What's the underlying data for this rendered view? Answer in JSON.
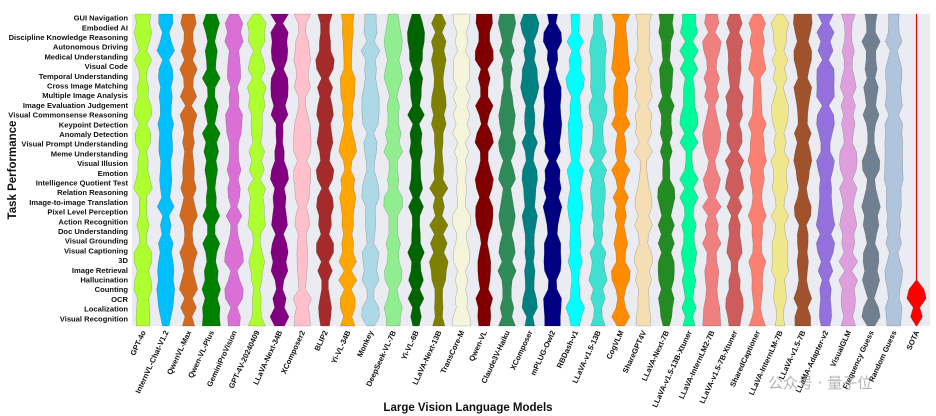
{
  "chart_data": {
    "type": "violin",
    "xlabel": "Large Vision Language Models",
    "ylabel": "Task Performance",
    "categories": [
      "GUI Navigation",
      "Embodied AI",
      "Discipline Knowledge Reasoning",
      "Autonomous Driving",
      "Medical Understanding",
      "Visual Code",
      "Temporal Understanding",
      "Cross Image Matching",
      "Multiple Image Analysis",
      "Image Evaluation Judgement",
      "Visual Commonsense Reasoning",
      "Keypoint Detection",
      "Anomaly Detection",
      "Visual Prompt Understanding",
      "Meme Understanding",
      "Visual Illusion",
      "Emotion",
      "Intelligence Quotient Test",
      "Relation Reasoning",
      "Image-to-image Translation",
      "Pixel Level Perception",
      "Action Recognition",
      "Doc Understanding",
      "Visual Grounding",
      "Visual Captioning",
      "3D",
      "Image Retrieval",
      "Hallucination",
      "Counting",
      "OCR",
      "Localization",
      "Visual Recognition"
    ],
    "models": [
      {
        "name": "GPT-4o",
        "color": "#adff2f"
      },
      {
        "name": "InternVL-Chat-V1.2",
        "color": "#00bfff"
      },
      {
        "name": "QwenVL-Max",
        "color": "#d2691e"
      },
      {
        "name": "Qwen-VL-Plus",
        "color": "#008000"
      },
      {
        "name": "GeminiProVision",
        "color": "#da70d6"
      },
      {
        "name": "GPT-4V-20240409",
        "color": "#adff2f"
      },
      {
        "name": "LLaVA-Next-34B",
        "color": "#800080"
      },
      {
        "name": "XComposer2",
        "color": "#ffc0cb"
      },
      {
        "name": "BLIP2",
        "color": "#a52a2a"
      },
      {
        "name": "Yi-VL-34B",
        "color": "#ffa500"
      },
      {
        "name": "Monkey",
        "color": "#add8e6"
      },
      {
        "name": "DeepSeek-VL-7B",
        "color": "#90ee90"
      },
      {
        "name": "Yi-VL-6B",
        "color": "#006400"
      },
      {
        "name": "LLaVA-Next-13B",
        "color": "#808000"
      },
      {
        "name": "TransCore-M",
        "color": "#f5f5dc"
      },
      {
        "name": "Qwen-VL",
        "color": "#800000"
      },
      {
        "name": "Claude3V-Haiku",
        "color": "#2e8b57"
      },
      {
        "name": "XComposer",
        "color": "#008080"
      },
      {
        "name": "mPLUG-Owl2",
        "color": "#000080"
      },
      {
        "name": "RBDash-v1",
        "color": "#00ffff"
      },
      {
        "name": "LLaVA-v1.5-13B",
        "color": "#40e0d0"
      },
      {
        "name": "CogVLM",
        "color": "#ff8c00"
      },
      {
        "name": "ShareGPT4V",
        "color": "#f5deb3"
      },
      {
        "name": "LLaVA-Next-7B",
        "color": "#228b22"
      },
      {
        "name": "LLaVA-v1.5-13B-Xtuner",
        "color": "#00fa9a"
      },
      {
        "name": "LLaVA-InternLM2-7B",
        "color": "#f08080"
      },
      {
        "name": "LLaVA-v1.5-7B-Xtuner",
        "color": "#cd5c5c"
      },
      {
        "name": "SharedCaptioner",
        "color": "#fa8072"
      },
      {
        "name": "LLaVA-InternLM-7B",
        "color": "#f0e68c"
      },
      {
        "name": "LLaVA-v1.5-7B",
        "color": "#a0522d"
      },
      {
        "name": "LLaMA-Adapter-v2",
        "color": "#9370db"
      },
      {
        "name": "VisualGLM",
        "color": "#dda0dd"
      },
      {
        "name": "Frequency Guess",
        "color": "#708090"
      },
      {
        "name": "Random Guess",
        "color": "#b0c4de"
      },
      {
        "name": "SOTA",
        "color": "#ff0000"
      }
    ]
  },
  "watermark": {
    "text": "公众号 · 量子位"
  }
}
